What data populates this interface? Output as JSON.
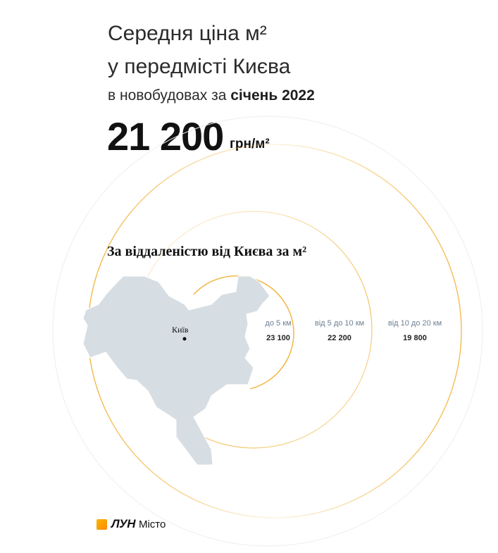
{
  "header": {
    "title_line1": "Середня ціна м²",
    "title_line2": "у передмісті Києва",
    "subtitle_prefix": "в новобудовах за ",
    "subtitle_period": "січень 2022"
  },
  "price": {
    "value": "21 200",
    "unit": "грн/м²"
  },
  "section_title": "За віддаленістю від Києва за м²",
  "map": {
    "city_label": "Київ",
    "fill_color": "#d7dee3",
    "ring_color": "#f2b23a"
  },
  "zones": [
    {
      "label": "до 5 км",
      "value": "23 100"
    },
    {
      "label": "від 5 до 10 км",
      "value": "22 200"
    },
    {
      "label": "від 10 до 20 км",
      "value": "19 800"
    }
  ],
  "logo": {
    "brand": "ЛУН",
    "sub": "Місто",
    "accent": "#f7a800"
  }
}
